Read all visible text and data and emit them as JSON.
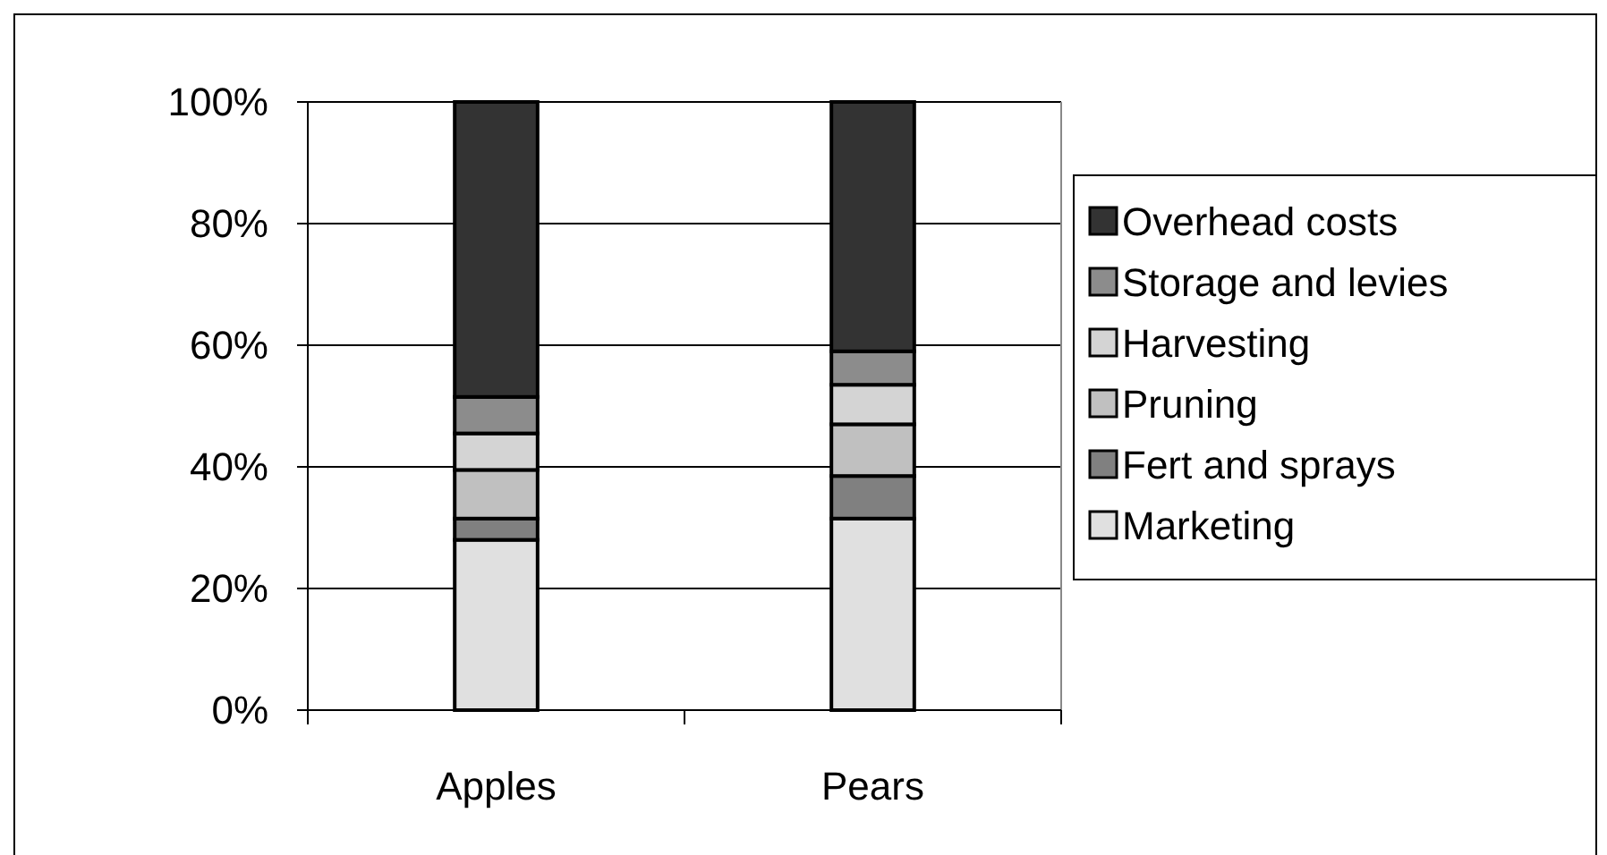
{
  "chart_data": {
    "type": "bar",
    "stacked": true,
    "categories": [
      "Apples",
      "Pears"
    ],
    "series": [
      {
        "name": "Marketing",
        "color": "#e0e0e0",
        "values": [
          28,
          31.5
        ]
      },
      {
        "name": "Fert and sprays",
        "color": "#808080",
        "values": [
          3.5,
          7
        ]
      },
      {
        "name": "Pruning",
        "color": "#c0c0c0",
        "values": [
          8,
          8.5
        ]
      },
      {
        "name": "Harvesting",
        "color": "#d4d4d4",
        "values": [
          6,
          6.5
        ]
      },
      {
        "name": "Storage and levies",
        "color": "#8c8c8c",
        "values": [
          6,
          5.5
        ]
      },
      {
        "name": "Overhead costs",
        "color": "#333333",
        "values": [
          48.5,
          41
        ]
      }
    ],
    "ylim": [
      0,
      100
    ],
    "yticks": [
      {
        "value": 0,
        "label": "0%"
      },
      {
        "value": 20,
        "label": "20%"
      },
      {
        "value": 40,
        "label": "40%"
      },
      {
        "value": 60,
        "label": "60%"
      },
      {
        "value": 80,
        "label": "80%"
      },
      {
        "value": 100,
        "label": "100%"
      }
    ],
    "grid": "y",
    "legend": "right"
  }
}
